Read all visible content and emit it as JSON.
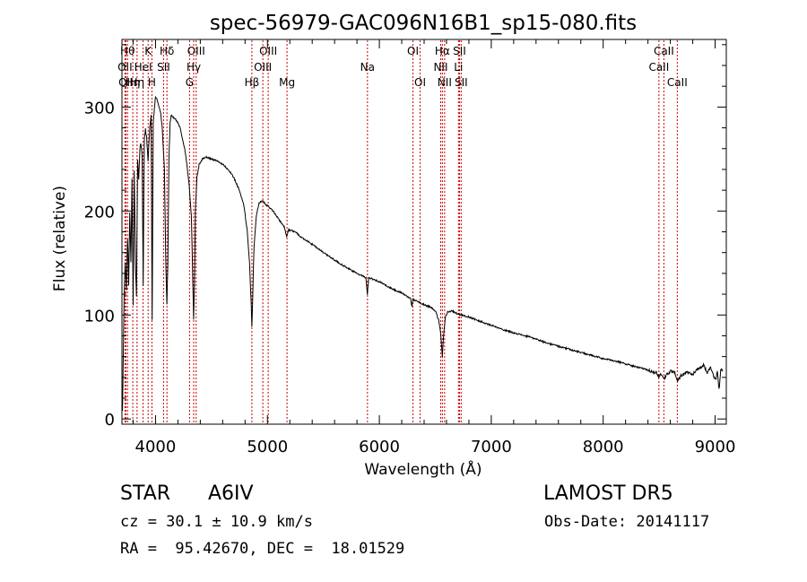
{
  "chart_data": {
    "type": "line",
    "title": "spec-56979-GAC096N16B1_sp15-080.fits",
    "xlabel": "Wavelength (Å)",
    "ylabel": "Flux (relative)",
    "xlim": [
      3700,
      9100
    ],
    "ylim": [
      -5,
      365
    ],
    "x_ticks": [
      4000,
      5000,
      6000,
      7000,
      8000,
      9000
    ],
    "y_ticks": [
      0,
      100,
      200,
      300
    ],
    "x_tick_labels": [
      "4000",
      "5000",
      "6000",
      "7000",
      "8000",
      "9000"
    ],
    "y_tick_labels": [
      "0",
      "100",
      "200",
      "300"
    ],
    "grid": false,
    "series_color": "#000000",
    "line_color": "#cc0000",
    "continuum": [
      [
        3705,
        10
      ],
      [
        3712,
        60
      ],
      [
        3720,
        120
      ],
      [
        3730,
        150
      ],
      [
        3740,
        125
      ],
      [
        3750,
        175
      ],
      [
        3760,
        130
      ],
      [
        3770,
        200
      ],
      [
        3780,
        150
      ],
      [
        3790,
        230
      ],
      [
        3800,
        110
      ],
      [
        3810,
        240
      ],
      [
        3820,
        150
      ],
      [
        3830,
        120
      ],
      [
        3840,
        250
      ],
      [
        3850,
        230
      ],
      [
        3860,
        260
      ],
      [
        3870,
        265
      ],
      [
        3880,
        255
      ],
      [
        3890,
        130
      ],
      [
        3900,
        270
      ],
      [
        3910,
        280
      ],
      [
        3920,
        270
      ],
      [
        3933,
        250
      ],
      [
        3945,
        275
      ],
      [
        3960,
        290
      ],
      [
        3970,
        95
      ],
      [
        3980,
        285
      ],
      [
        3990,
        300
      ],
      [
        4000,
        310
      ],
      [
        4010,
        308
      ],
      [
        4020,
        305
      ],
      [
        4030,
        300
      ],
      [
        4045,
        295
      ],
      [
        4060,
        280
      ],
      [
        4080,
        240
      ],
      [
        4090,
        160
      ],
      [
        4101,
        110
      ],
      [
        4110,
        150
      ],
      [
        4120,
        250
      ],
      [
        4130,
        285
      ],
      [
        4140,
        292
      ],
      [
        4160,
        290
      ],
      [
        4180,
        288
      ],
      [
        4200,
        285
      ],
      [
        4220,
        280
      ],
      [
        4240,
        270
      ],
      [
        4260,
        260
      ],
      [
        4280,
        245
      ],
      [
        4300,
        225
      ],
      [
        4320,
        195
      ],
      [
        4330,
        150
      ],
      [
        4340,
        95
      ],
      [
        4348,
        130
      ],
      [
        4356,
        200
      ],
      [
        4370,
        232
      ],
      [
        4390,
        245
      ],
      [
        4420,
        250
      ],
      [
        4450,
        252
      ],
      [
        4500,
        250
      ],
      [
        4550,
        248
      ],
      [
        4600,
        245
      ],
      [
        4650,
        240
      ],
      [
        4700,
        232
      ],
      [
        4750,
        220
      ],
      [
        4790,
        205
      ],
      [
        4820,
        180
      ],
      [
        4840,
        150
      ],
      [
        4855,
        110
      ],
      [
        4861,
        88
      ],
      [
        4867,
        112
      ],
      [
        4880,
        165
      ],
      [
        4900,
        195
      ],
      [
        4925,
        208
      ],
      [
        4950,
        210
      ],
      [
        5000,
        205
      ],
      [
        5050,
        200
      ],
      [
        5100,
        192
      ],
      [
        5150,
        185
      ],
      [
        5172,
        175
      ],
      [
        5190,
        182
      ],
      [
        5250,
        180
      ],
      [
        5300,
        175
      ],
      [
        5400,
        168
      ],
      [
        5500,
        160
      ],
      [
        5600,
        153
      ],
      [
        5700,
        146
      ],
      [
        5800,
        140
      ],
      [
        5880,
        136
      ],
      [
        5893,
        120
      ],
      [
        5905,
        136
      ],
      [
        6000,
        132
      ],
      [
        6100,
        126
      ],
      [
        6200,
        121
      ],
      [
        6280,
        116
      ],
      [
        6290,
        108
      ],
      [
        6300,
        115
      ],
      [
        6400,
        110
      ],
      [
        6470,
        107
      ],
      [
        6500,
        104
      ],
      [
        6530,
        95
      ],
      [
        6548,
        82
      ],
      [
        6563,
        60
      ],
      [
        6575,
        82
      ],
      [
        6590,
        98
      ],
      [
        6610,
        103
      ],
      [
        6650,
        104
      ],
      [
        6700,
        101
      ],
      [
        6800,
        98
      ],
      [
        6900,
        94
      ],
      [
        7000,
        90
      ],
      [
        7100,
        86
      ],
      [
        7200,
        83
      ],
      [
        7300,
        80
      ],
      [
        7400,
        77
      ],
      [
        7500,
        73
      ],
      [
        7600,
        70
      ],
      [
        7700,
        67
      ],
      [
        7800,
        64
      ],
      [
        7900,
        61
      ],
      [
        8000,
        58
      ],
      [
        8100,
        56
      ],
      [
        8200,
        53
      ],
      [
        8300,
        50
      ],
      [
        8400,
        47
      ],
      [
        8480,
        44
      ],
      [
        8500,
        40
      ],
      [
        8520,
        44
      ],
      [
        8545,
        38
      ],
      [
        8570,
        43
      ],
      [
        8600,
        46
      ],
      [
        8640,
        44
      ],
      [
        8665,
        37
      ],
      [
        8700,
        42
      ],
      [
        8750,
        45
      ],
      [
        8800,
        43
      ],
      [
        8850,
        48
      ],
      [
        8900,
        52
      ],
      [
        8930,
        44
      ],
      [
        8960,
        50
      ],
      [
        8990,
        40
      ],
      [
        9005,
        38
      ],
      [
        9020,
        45
      ],
      [
        9035,
        28
      ],
      [
        9050,
        48
      ],
      [
        9070,
        46
      ]
    ],
    "annotations": [
      {
        "wave": 3750,
        "label": "Hθ",
        "row": 1
      },
      {
        "wave": 3727,
        "label": "OII",
        "row": 2
      },
      {
        "wave": 3735,
        "label": "OII",
        "row": 3
      },
      {
        "wave": 3797,
        "label": "Hη",
        "row": 3
      },
      {
        "wave": 3835,
        "label": "Hη",
        "row": 3
      },
      {
        "wave": 3889,
        "label": "HeI",
        "row": 2
      },
      {
        "wave": 3934,
        "label": "K",
        "row": 1
      },
      {
        "wave": 3968,
        "label": "H",
        "row": 3
      },
      {
        "wave": 4072,
        "label": "SII",
        "row": 2
      },
      {
        "wave": 4102,
        "label": "Hδ",
        "row": 1
      },
      {
        "wave": 4304,
        "label": "G",
        "row": 3
      },
      {
        "wave": 4341,
        "label": "Hγ",
        "row": 2
      },
      {
        "wave": 4363,
        "label": "OIII",
        "row": 1
      },
      {
        "wave": 4861,
        "label": "Hβ",
        "row": 3
      },
      {
        "wave": 4959,
        "label": "OIII",
        "row": 2
      },
      {
        "wave": 5007,
        "label": "OIII",
        "row": 1
      },
      {
        "wave": 5175,
        "label": "Mg",
        "row": 3
      },
      {
        "wave": 5894,
        "label": "Na",
        "row": 2
      },
      {
        "wave": 6300,
        "label": "OI",
        "row": 1
      },
      {
        "wave": 6364,
        "label": "OI",
        "row": 3
      },
      {
        "wave": 6548,
        "label": "NII",
        "row": 2
      },
      {
        "wave": 6563,
        "label": "Hα",
        "row": 1
      },
      {
        "wave": 6583,
        "label": "NII",
        "row": 3
      },
      {
        "wave": 6707,
        "label": "Li",
        "row": 2
      },
      {
        "wave": 6716,
        "label": "SII",
        "row": 1
      },
      {
        "wave": 6731,
        "label": "SII",
        "row": 3
      },
      {
        "wave": 8498,
        "label": "CaII",
        "row": 2
      },
      {
        "wave": 8542,
        "label": "CaII",
        "row": 1
      },
      {
        "wave": 8662,
        "label": "CaII",
        "row": 3
      }
    ]
  },
  "footer": {
    "object_class": "STAR",
    "subclass": "A6IV",
    "survey": "LAMOST DR5",
    "cz_line": "cz = 30.1 ± 10.9 km/s",
    "obs_date": "Obs-Date: 20141117",
    "radec": "RA =  95.42670, DEC =  18.01529"
  }
}
